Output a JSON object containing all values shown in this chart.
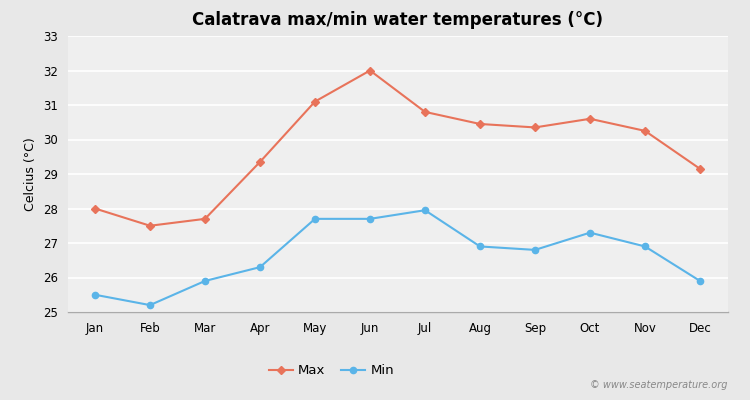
{
  "title": "Calatrava max/min water temperatures (°C)",
  "ylabel": "Celcius (°C)",
  "months": [
    "Jan",
    "Feb",
    "Mar",
    "Apr",
    "May",
    "Jun",
    "Jul",
    "Aug",
    "Sep",
    "Oct",
    "Nov",
    "Dec"
  ],
  "max_temps": [
    28.0,
    27.5,
    27.7,
    29.35,
    31.1,
    32.0,
    30.8,
    30.45,
    30.35,
    30.6,
    30.25,
    29.15
  ],
  "min_temps": [
    25.5,
    25.2,
    25.9,
    26.3,
    27.7,
    27.7,
    27.95,
    26.9,
    26.8,
    27.3,
    26.9,
    25.9
  ],
  "max_color": "#e8735a",
  "min_color": "#5ab4e8",
  "background_color": "#e8e8e8",
  "plot_bg_color": "#efefef",
  "grid_color": "#ffffff",
  "ylim": [
    25,
    33
  ],
  "yticks": [
    25,
    26,
    27,
    28,
    29,
    30,
    31,
    32,
    33
  ],
  "watermark": "© www.seatemperature.org",
  "legend_labels": [
    "Max",
    "Min"
  ],
  "title_fontsize": 12,
  "axis_label_fontsize": 9,
  "tick_fontsize": 8.5
}
